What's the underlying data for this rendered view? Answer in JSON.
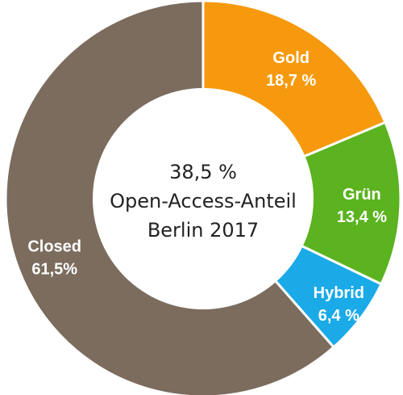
{
  "chart_data": {
    "type": "pie",
    "variant": "donut",
    "center_text": [
      "38,5 %",
      "Open-Access-Anteil",
      "Berlin 2017"
    ],
    "slices": [
      {
        "name": "Gold",
        "label_value": "18,7 %",
        "value": 18.7,
        "color": "#F7990C"
      },
      {
        "name": "Grün",
        "label_value": "13,4 %",
        "value": 13.4,
        "color": "#5BB31F"
      },
      {
        "name": "Hybrid",
        "label_value": "6,4 %",
        "value": 6.4,
        "color": "#1AAAE8"
      },
      {
        "name": "Closed",
        "label_value": "61,5%",
        "value": 61.5,
        "color": "#7B6C5E"
      }
    ]
  }
}
